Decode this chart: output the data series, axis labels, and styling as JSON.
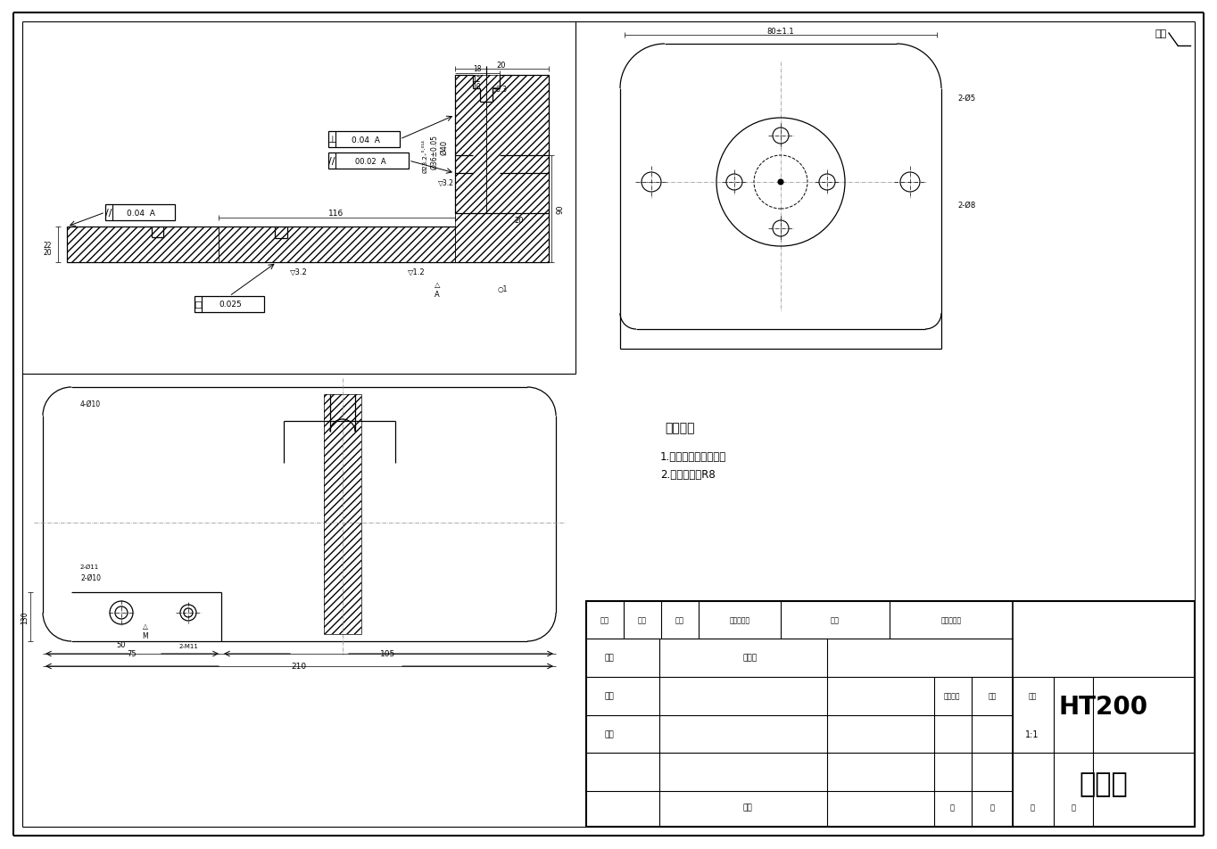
{
  "bg_color": "#ffffff",
  "border_color": "#000000",
  "line_color": "#000000",
  "title_material": "HT200",
  "title_part": "夹具体",
  "tech_title": "技术要求",
  "tech_req1": "1.锐边倒钓、去毛刺。",
  "tech_req2": "2.未注倒圆角R8",
  "corner_text": "其余",
  "table_labels": [
    "标记",
    "处数",
    "分区",
    "更改文件号",
    "签名",
    "年、月、日"
  ],
  "table_labels2": [
    "设计",
    "标准化",
    "阶段标记",
    "重量",
    "比例"
  ],
  "table_labels3": [
    "审核",
    "工艺",
    "批准",
    "共",
    "张",
    "第",
    "张"
  ],
  "scale": "1:1"
}
